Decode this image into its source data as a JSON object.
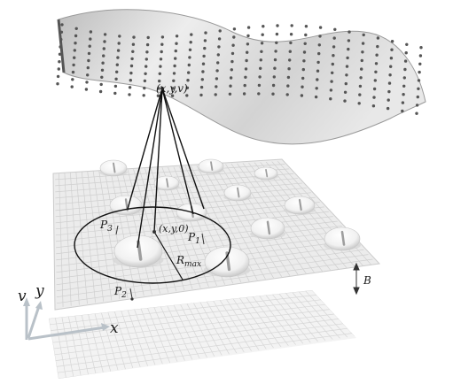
{
  "labels": {
    "point_xyv": "(x,y,v)",
    "point_xy0": "(x,y,0)",
    "p3_letter": "P",
    "p3_sub": "3",
    "p1_letter": "P",
    "p1_sub": "1",
    "p2_letter": "P",
    "p2_sub": "2",
    "rmax_letter": "R",
    "rmax_sub": "max",
    "b_label": "B",
    "axis_v": "v",
    "axis_y": "y",
    "axis_x": "x"
  },
  "colors": {
    "surface_fill": "#d9d9d9",
    "surface_dots": "#555555",
    "plane": "#e6e6e6",
    "grid": "#cfcfcf",
    "lines": "#111111",
    "axes": "#bfc6cc"
  },
  "icons": {
    "peak": "bump-with-I-glyph",
    "arrow": "double-headed-arrow"
  }
}
